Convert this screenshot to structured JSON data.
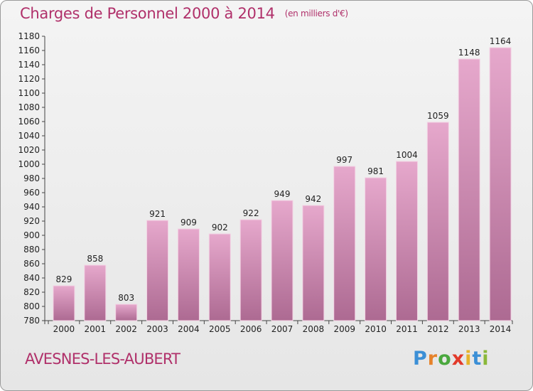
{
  "header": {
    "title": "Charges de Personnel 2000 à 2014",
    "unit": "(en milliers d'€)"
  },
  "footer": {
    "commune": "AVESNES-LES-AUBERT",
    "logo_letters": [
      "P",
      "r",
      "o",
      "x",
      "i",
      "t",
      "i"
    ]
  },
  "colors": {
    "accent": "#b0306a",
    "bar_top": "#e6a8cc",
    "bar_bottom": "#ad6a92",
    "logo": [
      "#3b8fd6",
      "#e6822a",
      "#4aa83e",
      "#e23a2a",
      "#e6b32a",
      "#3b8fd6",
      "#8ab83a"
    ]
  },
  "chart_data": {
    "type": "bar",
    "title": "Charges de Personnel 2000 à 2014",
    "subtitle": "(en milliers d'€)",
    "categories": [
      "2000",
      "2001",
      "2002",
      "2003",
      "2004",
      "2005",
      "2006",
      "2007",
      "2008",
      "2009",
      "2010",
      "2011",
      "2012",
      "2013",
      "2014"
    ],
    "values": [
      829,
      858,
      803,
      921,
      909,
      902,
      922,
      949,
      942,
      997,
      981,
      1004,
      1059,
      1148,
      1164
    ],
    "xlabel": "",
    "ylabel": "",
    "ylim": [
      780,
      1180
    ],
    "ytick_step": 20,
    "grid": false,
    "data_labels": true
  }
}
